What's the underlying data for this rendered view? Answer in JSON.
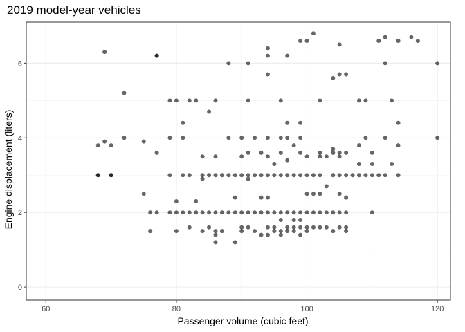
{
  "chart_data": {
    "type": "scatter",
    "title": "2019 model-year vehicles",
    "xlabel": "Passenger volume (cubic feet)",
    "ylabel": "Engine displacement (liters)",
    "xlim": [
      57,
      122
    ],
    "ylim": [
      -0.35,
      7.1
    ],
    "xticks": [
      60,
      80,
      100,
      120
    ],
    "yticks": [
      0,
      2,
      4,
      6
    ],
    "x_minor": [
      70,
      90,
      110
    ],
    "y_minor": [
      1,
      3,
      5
    ],
    "grid": true,
    "point_color": "#000000",
    "point_opacity": 0.6,
    "points": [
      [
        68,
        3.8
      ],
      [
        68,
        3.0
      ],
      [
        68,
        3.0
      ],
      [
        69,
        6.3
      ],
      [
        69,
        3.9
      ],
      [
        70,
        3.8
      ],
      [
        70,
        3.0
      ],
      [
        70,
        3.0
      ],
      [
        72,
        5.2
      ],
      [
        72,
        4.0
      ],
      [
        75,
        3.9
      ],
      [
        75,
        2.5
      ],
      [
        76,
        2.0
      ],
      [
        76,
        1.5
      ],
      [
        77,
        6.2
      ],
      [
        77,
        6.2
      ],
      [
        77,
        3.6
      ],
      [
        77,
        2.0
      ],
      [
        79,
        5.0
      ],
      [
        79,
        4.0
      ],
      [
        79,
        3.0
      ],
      [
        79,
        2.0
      ],
      [
        80,
        5.0
      ],
      [
        80,
        2.3
      ],
      [
        80,
        2.0
      ],
      [
        80,
        1.5
      ],
      [
        81,
        4.4
      ],
      [
        81,
        4.0
      ],
      [
        81,
        3.0
      ],
      [
        81,
        2.0
      ],
      [
        82,
        5.0
      ],
      [
        82,
        3.0
      ],
      [
        82,
        2.0
      ],
      [
        82,
        1.6
      ],
      [
        83,
        5.0
      ],
      [
        83,
        2.3
      ],
      [
        83,
        2.0
      ],
      [
        84,
        3.5
      ],
      [
        84,
        3.0
      ],
      [
        84,
        2.9
      ],
      [
        84,
        2.0
      ],
      [
        84,
        1.5
      ],
      [
        85,
        4.7
      ],
      [
        85,
        3.0
      ],
      [
        85,
        2.0
      ],
      [
        85,
        1.6
      ],
      [
        86,
        5.0
      ],
      [
        86,
        3.5
      ],
      [
        86,
        3.0
      ],
      [
        86,
        2.0
      ],
      [
        86,
        1.5
      ],
      [
        86,
        1.4
      ],
      [
        86,
        1.2
      ],
      [
        87,
        3.0
      ],
      [
        87,
        2.0
      ],
      [
        87,
        1.5
      ],
      [
        88,
        6.0
      ],
      [
        88,
        4.0
      ],
      [
        88,
        3.0
      ],
      [
        88,
        2.0
      ],
      [
        89,
        3.0
      ],
      [
        89,
        2.4
      ],
      [
        89,
        2.0
      ],
      [
        89,
        1.2
      ],
      [
        90,
        4.0
      ],
      [
        90,
        3.5
      ],
      [
        90,
        3.0
      ],
      [
        90,
        2.0
      ],
      [
        90,
        1.6
      ],
      [
        90,
        1.5
      ],
      [
        91,
        6.0
      ],
      [
        91,
        5.0
      ],
      [
        91,
        3.6
      ],
      [
        91,
        3.0
      ],
      [
        91,
        2.9
      ],
      [
        91,
        2.0
      ],
      [
        91,
        1.6
      ],
      [
        92,
        4.0
      ],
      [
        92,
        3.0
      ],
      [
        92,
        2.0
      ],
      [
        92,
        1.5
      ],
      [
        93,
        3.6
      ],
      [
        93,
        3.0
      ],
      [
        93,
        2.4
      ],
      [
        93,
        2.0
      ],
      [
        93,
        1.4
      ],
      [
        94,
        6.4
      ],
      [
        94,
        6.2
      ],
      [
        94,
        5.7
      ],
      [
        94,
        4.0
      ],
      [
        94,
        3.5
      ],
      [
        94,
        3.0
      ],
      [
        94,
        2.4
      ],
      [
        94,
        2.0
      ],
      [
        94,
        1.6
      ],
      [
        94,
        1.4
      ],
      [
        95,
        3.3
      ],
      [
        95,
        3.0
      ],
      [
        95,
        2.0
      ],
      [
        95,
        1.6
      ],
      [
        95,
        1.5
      ],
      [
        96,
        5.0
      ],
      [
        96,
        4.0
      ],
      [
        96,
        3.6
      ],
      [
        96,
        3.0
      ],
      [
        96,
        2.0
      ],
      [
        96,
        1.8
      ],
      [
        96,
        1.5
      ],
      [
        96,
        1.4
      ],
      [
        97,
        6.2
      ],
      [
        97,
        4.4
      ],
      [
        97,
        4.0
      ],
      [
        97,
        3.4
      ],
      [
        97,
        3.0
      ],
      [
        97,
        2.0
      ],
      [
        97,
        1.6
      ],
      [
        97,
        1.5
      ],
      [
        98,
        3.8
      ],
      [
        98,
        3.0
      ],
      [
        98,
        2.0
      ],
      [
        98,
        1.8
      ],
      [
        98,
        1.6
      ],
      [
        98,
        1.5
      ],
      [
        99,
        6.6
      ],
      [
        99,
        4.4
      ],
      [
        99,
        4.0
      ],
      [
        99,
        3.6
      ],
      [
        99,
        3.0
      ],
      [
        99,
        2.0
      ],
      [
        99,
        1.8
      ],
      [
        99,
        1.6
      ],
      [
        99,
        1.4
      ],
      [
        100,
        6.6
      ],
      [
        100,
        3.5
      ],
      [
        100,
        3.0
      ],
      [
        100,
        2.5
      ],
      [
        100,
        2.0
      ],
      [
        100,
        1.6
      ],
      [
        100,
        1.5
      ],
      [
        101,
        6.8
      ],
      [
        101,
        3.0
      ],
      [
        101,
        2.5
      ],
      [
        101,
        2.0
      ],
      [
        101,
        1.6
      ],
      [
        102,
        5.0
      ],
      [
        102,
        3.6
      ],
      [
        102,
        3.5
      ],
      [
        102,
        3.0
      ],
      [
        102,
        2.5
      ],
      [
        102,
        2.0
      ],
      [
        102,
        1.6
      ],
      [
        103,
        3.5
      ],
      [
        103,
        2.7
      ],
      [
        103,
        2.0
      ],
      [
        103,
        1.6
      ],
      [
        104,
        5.6
      ],
      [
        104,
        3.7
      ],
      [
        104,
        3.6
      ],
      [
        104,
        3.0
      ],
      [
        104,
        2.0
      ],
      [
        104,
        1.5
      ],
      [
        105,
        6.5
      ],
      [
        105,
        5.7
      ],
      [
        105,
        3.6
      ],
      [
        105,
        3.5
      ],
      [
        105,
        3.0
      ],
      [
        105,
        2.5
      ],
      [
        105,
        2.0
      ],
      [
        105,
        1.6
      ],
      [
        106,
        5.7
      ],
      [
        106,
        3.6
      ],
      [
        106,
        3.0
      ],
      [
        106,
        2.4
      ],
      [
        106,
        2.0
      ],
      [
        106,
        1.6
      ],
      [
        106,
        1.5
      ],
      [
        107,
        3.0
      ],
      [
        108,
        5.0
      ],
      [
        108,
        3.8
      ],
      [
        108,
        3.3
      ],
      [
        108,
        3.0
      ],
      [
        109,
        5.0
      ],
      [
        109,
        4.0
      ],
      [
        109,
        3.0
      ],
      [
        110,
        3.6
      ],
      [
        110,
        3.3
      ],
      [
        110,
        3.0
      ],
      [
        110,
        2.0
      ],
      [
        111,
        6.6
      ],
      [
        111,
        3.0
      ],
      [
        112,
        6.7
      ],
      [
        112,
        6.0
      ],
      [
        112,
        4.0
      ],
      [
        112,
        3.0
      ],
      [
        113,
        5.0
      ],
      [
        113,
        3.3
      ],
      [
        114,
        6.6
      ],
      [
        114,
        4.4
      ],
      [
        114,
        3.8
      ],
      [
        114,
        3.0
      ],
      [
        116,
        6.7
      ],
      [
        117,
        6.6
      ],
      [
        120,
        6.0
      ],
      [
        120,
        4.0
      ]
    ]
  }
}
